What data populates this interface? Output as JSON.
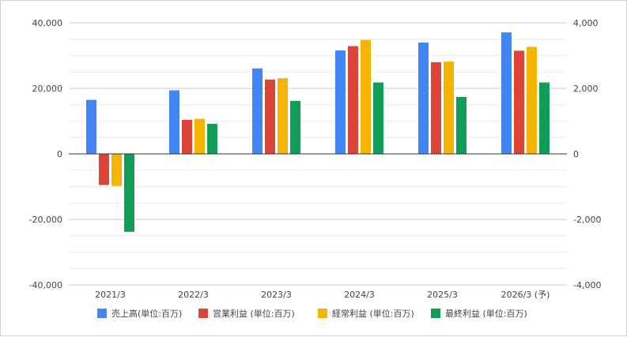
{
  "chart_data": {
    "type": "bar",
    "title": "",
    "xlabel": "",
    "ylabel": "",
    "categories": [
      "2021/3",
      "2022/3",
      "2023/3",
      "2024/3",
      "2025/3",
      "2026/3 (予)"
    ],
    "series": [
      {
        "name": "売上高(単位:百万)",
        "color": "#4285f4",
        "values": [
          16500,
          19400,
          26100,
          31600,
          34000,
          37100
        ]
      },
      {
        "name": "営業利益 (単位:百万)",
        "color": "#db4437",
        "values": [
          -950,
          1040,
          2270,
          3290,
          2800,
          3150
        ]
      },
      {
        "name": "経常利益 (単位:百万)",
        "color": "#f4b400",
        "values": [
          -980,
          1070,
          2310,
          3480,
          2820,
          3270
        ]
      },
      {
        "name": "最終利益 (単位:百万)",
        "color": "#0f9d58",
        "values": [
          -2380,
          920,
          1620,
          2180,
          1740,
          2180
        ]
      }
    ],
    "axis_assignment": [
      "left",
      "right",
      "right",
      "right"
    ],
    "ylim_left": [
      -40000,
      40000
    ],
    "ylim_right": [
      -4000,
      4000
    ],
    "yticks_left": [
      "40,000",
      "20,000",
      "0",
      "-20,000",
      "-40,000"
    ],
    "yticks_right": [
      "4,000",
      "2,000",
      "0",
      "-2,000",
      "-4,000"
    ],
    "grid": true,
    "legend_position": "bottom"
  }
}
